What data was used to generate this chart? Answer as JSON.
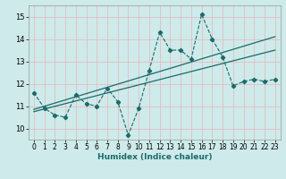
{
  "xlabel": "Humidex (Indice chaleur)",
  "bg_color": "#ceeaea",
  "grid_color": "#e8b4b8",
  "line_color": "#1a6b6b",
  "xlim": [
    -0.5,
    23.5
  ],
  "ylim": [
    9.5,
    15.5
  ],
  "xticks": [
    0,
    1,
    2,
    3,
    4,
    5,
    6,
    7,
    8,
    9,
    10,
    11,
    12,
    13,
    14,
    15,
    16,
    17,
    18,
    19,
    20,
    21,
    22,
    23
  ],
  "yticks": [
    10,
    11,
    12,
    13,
    14,
    15
  ],
  "line1_x": [
    0,
    1,
    2,
    3,
    4,
    5,
    6,
    7,
    8,
    9,
    10,
    11,
    12,
    13,
    14,
    15,
    16,
    17,
    18,
    19,
    20,
    21,
    22,
    23
  ],
  "line1_y": [
    11.6,
    10.9,
    10.6,
    10.5,
    11.5,
    11.1,
    11.0,
    11.8,
    11.2,
    9.7,
    10.9,
    12.6,
    14.3,
    13.5,
    13.5,
    13.1,
    15.1,
    14.0,
    13.2,
    11.9,
    12.1,
    12.2,
    12.1,
    12.2
  ],
  "trend1_x": [
    0,
    23
  ],
  "trend1_y": [
    10.85,
    14.1
  ],
  "trend2_x": [
    0,
    23
  ],
  "trend2_y": [
    10.75,
    13.5
  ]
}
